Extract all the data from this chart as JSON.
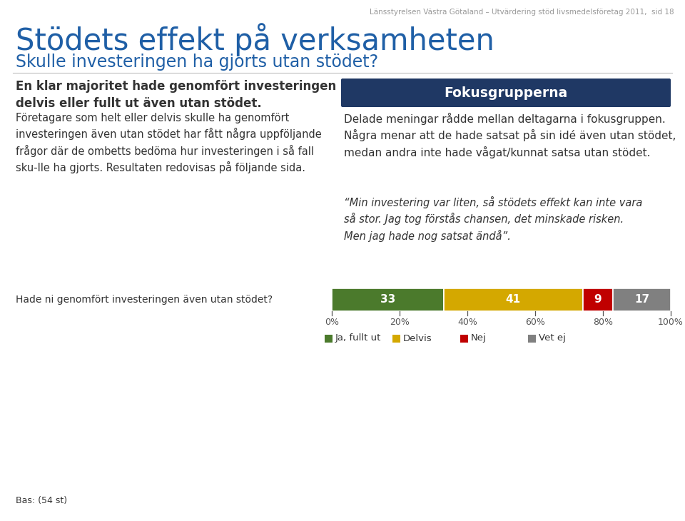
{
  "background_color": "#ffffff",
  "header_text": "Länsstyrelsen Västra Götaland – Utvärdering stöd livsmedelsföretag 2011,  sid 18",
  "title": "Stödets effekt på verksamheten",
  "subtitle": "Skulle investeringen ha gjorts utan stödet?",
  "left_col_text1": "En klar majoritet hade genomfört investeringen\ndelvis eller fullt ut även utan stödet.",
  "left_col_text2": "Företagare som helt eller delvis skulle ha genomfört\ninvesteringen även utan stödet har fått några uppföljande\nfrågor där de ombetts bedöma hur investeringen i så fall\nsku­lle ha gjorts. Resultaten redovisas på följande sida.",
  "fokus_title": "Fokusgrupperna",
  "fokus_title_bg": "#1f3864",
  "fokus_text1": "Delade meningar rådde mellan deltagarna i fokusgruppen. Några menar att de hade satsat på sin idé även utan stödet, medan andra inte hade vågat/kunnat satsa utan stödet.",
  "fokus_quote": "“Min investering var liten, så stödets effekt kan inte vara\nså stor. Jag tog förstås chansen, det minskade risken.\nMen jag hade nog satsat ändå”.",
  "question_label": "Hade ni genomfört investeringen även utan stödet?",
  "bar_values": [
    33,
    41,
    9,
    17
  ],
  "bar_colors": [
    "#4b7a2c",
    "#d4a800",
    "#c00000",
    "#808080"
  ],
  "bar_labels": [
    "33",
    "41",
    "9",
    "17"
  ],
  "legend_labels": [
    "Ja, fullt ut",
    "Delvis",
    "Nej",
    "Vet ej"
  ],
  "x_ticks": [
    0,
    20,
    40,
    60,
    80,
    100
  ],
  "x_tick_labels": [
    "0%",
    "20%",
    "40%",
    "60%",
    "80%",
    "100%"
  ],
  "bas_text": "Bas: (54 st)",
  "title_color": "#1f5fa6",
  "subtitle_color": "#1f5fa6",
  "text_color": "#333333",
  "header_color": "#999999",
  "divider_color": "#c0c0c0"
}
